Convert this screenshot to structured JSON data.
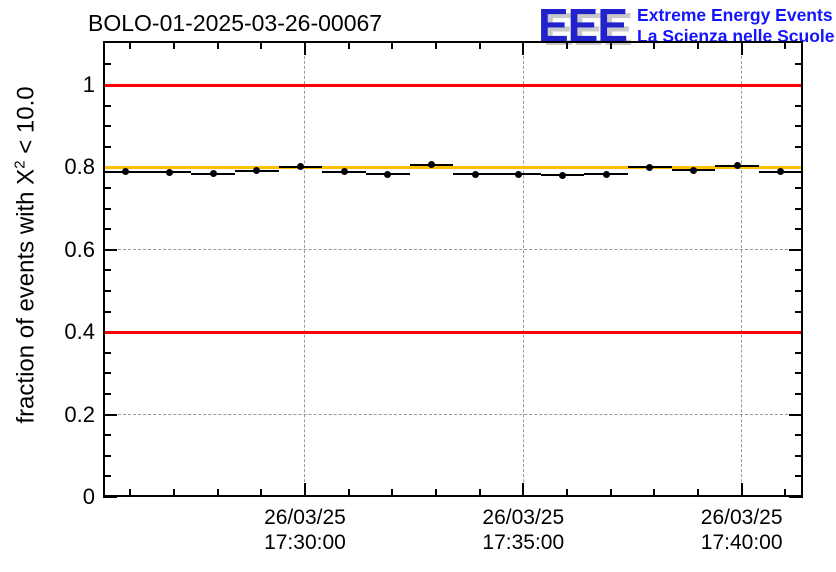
{
  "header": {
    "title": "BOLO-01-2025-03-26-00067",
    "logo": {
      "acronym": "EEE",
      "tagline1": "Extreme Energy Events",
      "tagline2": "La Scienza nelle Scuole",
      "acronym_color": "#2222cc",
      "shadow_color": "#c9c9c9",
      "tagline_color": "#1414ff"
    }
  },
  "chart_data": {
    "type": "scatter",
    "title": "BOLO-01-2025-03-26-00067",
    "ylabel": {
      "prefix": "fraction of events with X",
      "sup": "2",
      "suffix": " < 10.0"
    },
    "xlabel": "",
    "x_unit_note": "time of day on 26/03/25, expressed in minutes after 17:00",
    "xlim": [
      25.375,
      41.405
    ],
    "ylim": [
      0,
      1.107
    ],
    "grid": true,
    "gridline_color": "#999999",
    "y_axis": {
      "major_ticks": [
        0,
        0.2,
        0.4,
        0.6,
        0.8,
        1.0
      ],
      "labels": [
        "0",
        "0.2",
        "0.4",
        "0.6",
        "0.8",
        "1"
      ],
      "minor_step": 0.05
    },
    "x_axis": {
      "major_ticks": [
        30,
        35,
        40
      ],
      "labels": [
        [
          "26/03/25",
          "17:30:00"
        ],
        [
          "26/03/25",
          "17:35:00"
        ],
        [
          "26/03/25",
          "17:40:00"
        ]
      ],
      "minor_step": 1,
      "minor_range": [
        26,
        41
      ]
    },
    "series": [
      {
        "name": "fraction-per-minute",
        "marker": "filled-circle",
        "color": "#000000",
        "xerr": 0.5,
        "x": [
          25.9,
          26.9,
          27.9,
          28.9,
          29.9,
          30.9,
          31.9,
          32.9,
          33.9,
          34.9,
          35.9,
          36.9,
          37.9,
          38.9,
          39.9,
          40.9
        ],
        "y": [
          0.789,
          0.788,
          0.785,
          0.792,
          0.802,
          0.789,
          0.784,
          0.806,
          0.783,
          0.783,
          0.781,
          0.783,
          0.801,
          0.793,
          0.804,
          0.789
        ]
      }
    ],
    "reference_lines": [
      {
        "name": "upper-limit",
        "y": 1.0,
        "color": "#ff0000"
      },
      {
        "name": "lower-limit",
        "y": 0.4,
        "color": "#ff0000"
      },
      {
        "name": "nominal-level",
        "y": 0.8,
        "color": "#ffc000"
      }
    ]
  }
}
